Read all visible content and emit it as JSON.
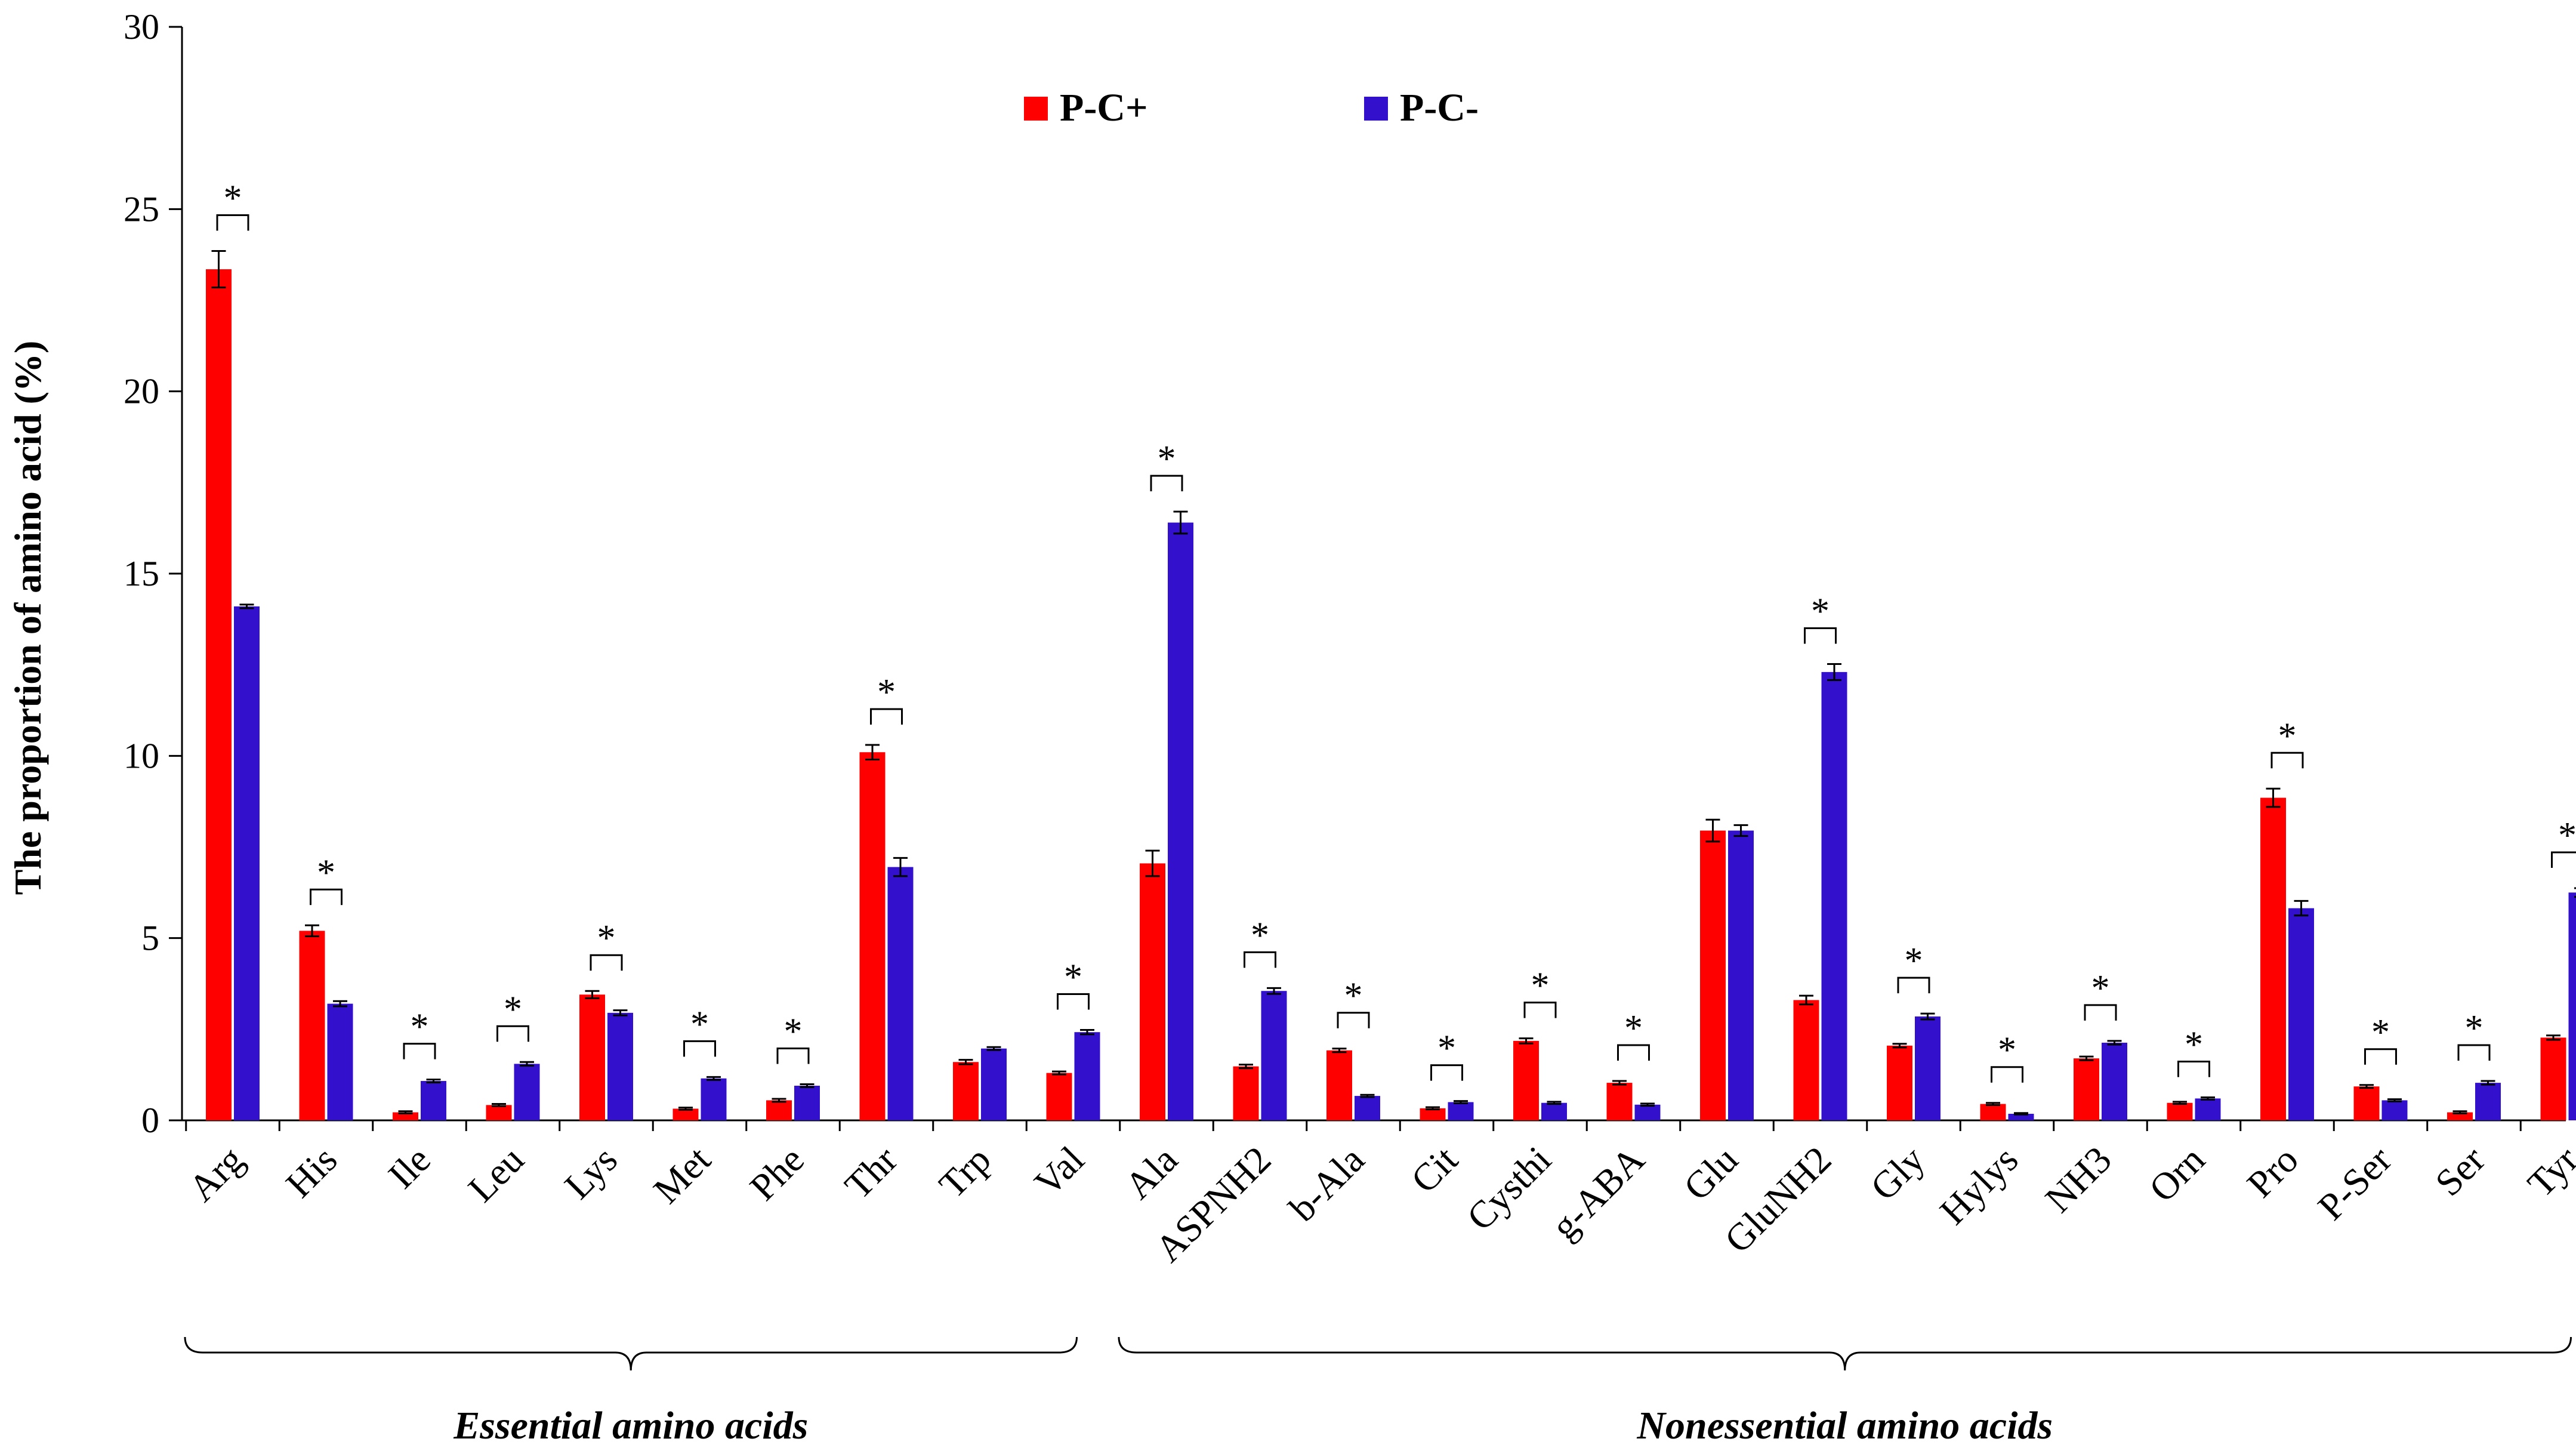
{
  "chart_data": {
    "type": "bar",
    "title": "",
    "xlabel": "",
    "ylabel": "The proportion of amino acid (%)",
    "ylim": [
      0,
      30
    ],
    "yticks": [
      0,
      5,
      10,
      15,
      20,
      25,
      30
    ],
    "grid": false,
    "legend_position": "top-center",
    "categories": [
      "Arg",
      "His",
      "Ile",
      "Leu",
      "Lys",
      "Met",
      "Phe",
      "Thr",
      "Trp",
      "Val",
      "Ala",
      "ASPNH2",
      "b-Ala",
      "Cit",
      "Cysthi",
      "g-ABA",
      "Glu",
      "GluNH2",
      "Gly",
      "Hylys",
      "NH3",
      "Orn",
      "Pro",
      "P-Ser",
      "Ser",
      "Tyr"
    ],
    "series": [
      {
        "name": "P-C+",
        "color": "#ff0000",
        "values": [
          23.35,
          5.2,
          0.22,
          0.42,
          3.45,
          0.32,
          0.55,
          10.1,
          1.6,
          1.3,
          7.05,
          1.48,
          1.92,
          0.33,
          2.18,
          1.03,
          7.95,
          3.3,
          2.05,
          0.45,
          1.7,
          0.48,
          8.85,
          0.93,
          0.22,
          2.27
        ],
        "errors": [
          0.5,
          0.15,
          0.03,
          0.03,
          0.1,
          0.03,
          0.04,
          0.2,
          0.06,
          0.04,
          0.35,
          0.05,
          0.05,
          0.03,
          0.07,
          0.05,
          0.3,
          0.12,
          0.05,
          0.03,
          0.05,
          0.03,
          0.25,
          0.04,
          0.03,
          0.06
        ]
      },
      {
        "name": "P-C-",
        "color": "#3311cc",
        "values": [
          14.1,
          3.2,
          1.08,
          1.55,
          2.95,
          1.15,
          0.95,
          6.95,
          1.97,
          2.42,
          16.4,
          3.55,
          0.67,
          0.5,
          0.48,
          0.43,
          7.95,
          12.3,
          2.85,
          0.18,
          2.13,
          0.6,
          5.82,
          0.55,
          1.03,
          6.25
        ],
        "errors": [
          0.05,
          0.07,
          0.04,
          0.05,
          0.07,
          0.04,
          0.04,
          0.25,
          0.04,
          0.06,
          0.3,
          0.08,
          0.03,
          0.03,
          0.03,
          0.03,
          0.15,
          0.22,
          0.08,
          0.02,
          0.05,
          0.03,
          0.2,
          0.03,
          0.05,
          0.12
        ]
      }
    ],
    "significance_marker": "*",
    "significant": [
      true,
      true,
      true,
      true,
      true,
      true,
      true,
      true,
      false,
      true,
      true,
      true,
      true,
      true,
      true,
      true,
      false,
      true,
      true,
      true,
      true,
      true,
      true,
      true,
      true,
      true
    ],
    "groups": [
      {
        "label": "Essential amino acids",
        "start": 0,
        "end": 9
      },
      {
        "label": "Nonessential amino acids",
        "start": 10,
        "end": 25
      }
    ]
  }
}
